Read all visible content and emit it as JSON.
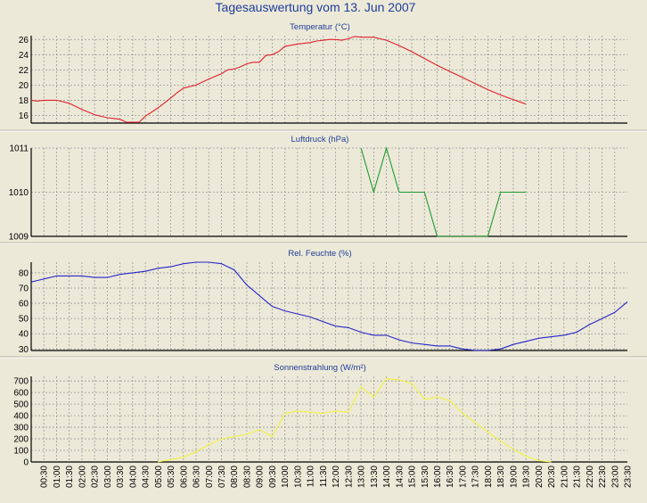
{
  "window_title": "Tagesauswertung vom 13. Jun 2007",
  "colors": {
    "background": "#ece9d8",
    "grid": "#9a9a9a",
    "temperature": "#e0202a",
    "pressure": "#1f9a2e",
    "humidity": "#2426c8",
    "radiation": "#f3f341"
  },
  "x_tick_labels": [
    "00:30",
    "01:00",
    "01:30",
    "02:00",
    "02:30",
    "03:00",
    "03:30",
    "04:00",
    "04:30",
    "05:00",
    "05:30",
    "06:00",
    "06:30",
    "07:00",
    "07:30",
    "08:00",
    "08:30",
    "09:00",
    "09:30",
    "10:00",
    "10:30",
    "11:00",
    "11:30",
    "12:00",
    "12:30",
    "13:00",
    "13:30",
    "14:00",
    "14:30",
    "15:00",
    "15:30",
    "16:00",
    "16:30",
    "17:00",
    "17:30",
    "18:00",
    "18:30",
    "19:00",
    "19:30",
    "20:00",
    "20:30",
    "21:00",
    "21:30",
    "22:00",
    "22:30",
    "23:00",
    "23:30"
  ],
  "chart_data": [
    {
      "type": "line",
      "title": "Temperatur (°C)",
      "yticks": [
        16,
        18,
        20,
        22,
        24,
        26
      ],
      "ylim": [
        15,
        26.5
      ],
      "grid": true,
      "series": [
        {
          "color": "#e0202a",
          "points": [
            [
              0.0,
              18.0
            ],
            [
              0.5,
              17.9
            ],
            [
              1.0,
              18.0
            ],
            [
              2.0,
              18.0
            ],
            [
              3.0,
              17.6
            ],
            [
              4.0,
              16.8
            ],
            [
              5.0,
              16.1
            ],
            [
              6.0,
              15.7
            ],
            [
              7.0,
              15.5
            ],
            [
              7.5,
              15.1
            ],
            [
              8.5,
              15.1
            ],
            [
              9.0,
              15.9
            ],
            [
              10.0,
              17.0
            ],
            [
              11.0,
              18.3
            ],
            [
              11.5,
              19.0
            ],
            [
              12.0,
              19.6
            ],
            [
              13.0,
              20.0
            ],
            [
              14.0,
              20.8
            ],
            [
              15.0,
              21.5
            ],
            [
              15.5,
              22.0
            ],
            [
              16.0,
              22.1
            ],
            [
              16.5,
              22.4
            ],
            [
              17.0,
              22.8
            ],
            [
              17.5,
              23.0
            ],
            [
              18.0,
              23.0
            ],
            [
              18.5,
              23.9
            ],
            [
              19.0,
              24.0
            ],
            [
              19.5,
              24.4
            ],
            [
              20.0,
              25.1
            ],
            [
              21.0,
              25.4
            ],
            [
              22.0,
              25.6
            ],
            [
              22.5,
              25.8
            ],
            [
              23.5,
              26.0
            ],
            [
              24.0,
              26.0
            ],
            [
              24.5,
              25.9
            ],
            [
              25.0,
              26.1
            ],
            [
              25.5,
              26.4
            ],
            [
              26.0,
              26.3
            ],
            [
              27.0,
              26.3
            ],
            [
              28.0,
              25.9
            ],
            [
              29.0,
              25.2
            ],
            [
              30.0,
              24.4
            ],
            [
              31.0,
              23.5
            ],
            [
              32.0,
              22.6
            ],
            [
              33.0,
              21.8
            ],
            [
              34.0,
              21.0
            ],
            [
              35.0,
              20.2
            ],
            [
              36.0,
              19.4
            ],
            [
              37.0,
              18.7
            ],
            [
              38.0,
              18.1
            ],
            [
              39.0,
              17.5
            ]
          ]
        }
      ]
    },
    {
      "type": "line",
      "title": "Luftdruck (hPa)",
      "yticks": [
        1009,
        1010,
        1011
      ],
      "ylim": [
        1009,
        1011
      ],
      "grid": true,
      "series": [
        {
          "color": "#1f9a2e",
          "points": [
            [
              26.0,
              1011
            ],
            [
              27.0,
              1010
            ],
            [
              28.0,
              1011
            ],
            [
              29.0,
              1010
            ],
            [
              31.0,
              1010
            ],
            [
              32.0,
              1009
            ],
            [
              36.0,
              1009
            ],
            [
              37.0,
              1010
            ],
            [
              39.0,
              1010
            ]
          ]
        }
      ]
    },
    {
      "type": "line",
      "title": "Rel. Feuchte (%)",
      "yticks": [
        30,
        40,
        50,
        60,
        70,
        80
      ],
      "ylim": [
        29,
        87
      ],
      "grid": true,
      "series": [
        {
          "color": "#2426c8",
          "points": [
            [
              0.0,
              74
            ],
            [
              0.5,
              75
            ],
            [
              1.0,
              76
            ],
            [
              2.0,
              78
            ],
            [
              3.0,
              78
            ],
            [
              4.0,
              78
            ],
            [
              5.0,
              77
            ],
            [
              6.0,
              77
            ],
            [
              7.0,
              79
            ],
            [
              8.0,
              80
            ],
            [
              9.0,
              81
            ],
            [
              10.0,
              83
            ],
            [
              11.0,
              84
            ],
            [
              12.0,
              86
            ],
            [
              13.0,
              87
            ],
            [
              14.0,
              87
            ],
            [
              15.0,
              86
            ],
            [
              16.0,
              82
            ],
            [
              17.0,
              72
            ],
            [
              18.0,
              65
            ],
            [
              19.0,
              58
            ],
            [
              20.0,
              55
            ],
            [
              21.0,
              53
            ],
            [
              22.0,
              51
            ],
            [
              23.0,
              48
            ],
            [
              24.0,
              45
            ],
            [
              25.0,
              44
            ],
            [
              26.0,
              41
            ],
            [
              27.0,
              39
            ],
            [
              28.0,
              39
            ],
            [
              29.0,
              36
            ],
            [
              30.0,
              34
            ],
            [
              31.0,
              33
            ],
            [
              32.0,
              32
            ],
            [
              33.0,
              32
            ],
            [
              34.0,
              30
            ],
            [
              35.0,
              29
            ],
            [
              36.0,
              29
            ],
            [
              37.0,
              30
            ],
            [
              38.0,
              33
            ],
            [
              39.0,
              35
            ],
            [
              40.0,
              37
            ],
            [
              41.0,
              38
            ],
            [
              42.0,
              39
            ],
            [
              43.0,
              41
            ],
            [
              44.0,
              46
            ],
            [
              45.0,
              50
            ],
            [
              46.0,
              54
            ],
            [
              47.0,
              61
            ]
          ]
        }
      ]
    },
    {
      "type": "line",
      "title": "Sonnenstrahlung (W/m²)",
      "yticks": [
        0,
        100,
        200,
        300,
        400,
        500,
        600,
        700
      ],
      "ylim": [
        0,
        740
      ],
      "grid": true,
      "series": [
        {
          "color": "#f3f341",
          "points": [
            [
              10.0,
              0
            ],
            [
              11.0,
              20
            ],
            [
              12.0,
              40
            ],
            [
              13.0,
              90
            ],
            [
              14.0,
              150
            ],
            [
              15.0,
              200
            ],
            [
              16.0,
              220
            ],
            [
              17.0,
              240
            ],
            [
              18.0,
              280
            ],
            [
              19.0,
              220
            ],
            [
              20.0,
              420
            ],
            [
              21.0,
              440
            ],
            [
              22.0,
              430
            ],
            [
              23.0,
              420
            ],
            [
              24.0,
              440
            ],
            [
              25.0,
              430
            ],
            [
              26.0,
              650
            ],
            [
              27.0,
              560
            ],
            [
              28.0,
              720
            ],
            [
              29.0,
              710
            ],
            [
              30.0,
              680
            ],
            [
              31.0,
              540
            ],
            [
              32.0,
              560
            ],
            [
              33.0,
              530
            ],
            [
              34.0,
              420
            ],
            [
              35.0,
              340
            ],
            [
              36.0,
              260
            ],
            [
              37.0,
              180
            ],
            [
              38.0,
              110
            ],
            [
              39.0,
              50
            ],
            [
              40.0,
              10
            ],
            [
              41.0,
              0
            ]
          ]
        }
      ]
    }
  ]
}
